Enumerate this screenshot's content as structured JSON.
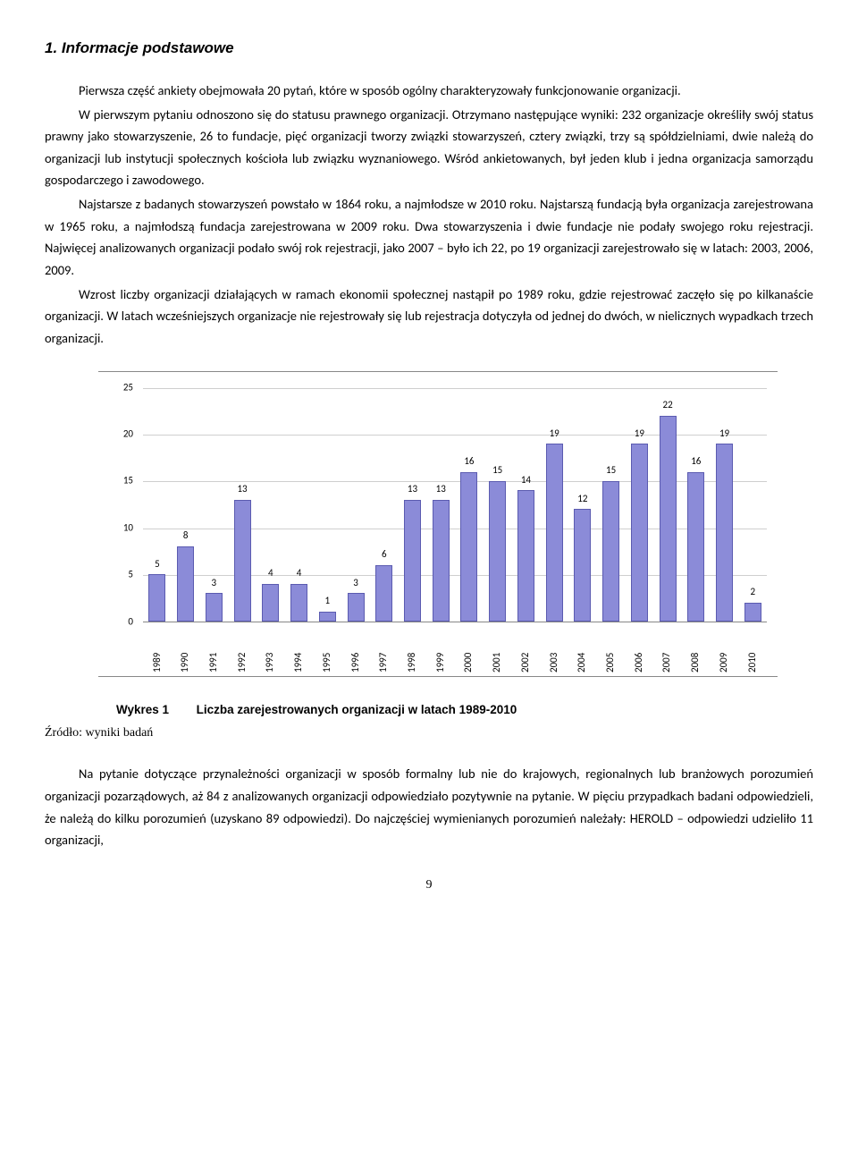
{
  "heading": "1. Informacje podstawowe",
  "para1": "Pierwsza część ankiety obejmowała 20 pytań, które w sposób ogólny charakteryzowały funkcjonowanie organizacji.",
  "para2": "W pierwszym pytaniu odnoszono się do statusu prawnego organizacji. Otrzymano następujące wyniki: 232 organizacje określiły swój status prawny jako stowarzyszenie, 26 to fundacje, pięć organizacji tworzy związki stowarzyszeń, cztery związki, trzy są spółdzielniami, dwie należą do organizacji lub instytucji społecznych kościoła lub związku wyznaniowego. Wśród ankietowanych, był jeden klub i jedna organizacja samorządu gospodarczego i zawodowego.",
  "para3": "Najstarsze z badanych stowarzyszeń powstało w 1864 roku, a najmłodsze w 2010 roku. Najstarszą fundacją była organizacja zarejestrowana w 1965 roku, a najmłodszą fundacja zarejestrowana w 2009 roku. Dwa stowarzyszenia i dwie fundacje nie podały swojego roku rejestracji. Najwięcej analizowanych organizacji podało swój rok rejestracji, jako 2007 – było ich 22, po 19 organizacji zarejestrowało się w latach: 2003, 2006, 2009.",
  "para4": "Wzrost liczby organizacji działających w ramach ekonomii społecznej nastąpił po 1989 roku, gdzie rejestrować zaczęło się po kilkanaście organizacji. W latach wcześniejszych organizacje nie rejestrowały się lub rejestracja dotyczyła od jednej do dwóch, w nielicznych wypadkach trzech organizacji.",
  "chart": {
    "type": "bar",
    "years": [
      "1989",
      "1990",
      "1991",
      "1992",
      "1993",
      "1994",
      "1995",
      "1996",
      "1997",
      "1998",
      "1999",
      "2000",
      "2001",
      "2002",
      "2003",
      "2004",
      "2005",
      "2006",
      "2007",
      "2008",
      "2009",
      "2010"
    ],
    "values": [
      5,
      8,
      3,
      13,
      4,
      4,
      1,
      3,
      6,
      13,
      13,
      16,
      15,
      14,
      19,
      12,
      15,
      19,
      22,
      16,
      19,
      2
    ],
    "ymax": 25,
    "ytick_step": 5,
    "bar_color": "#8b8bd8",
    "bar_border": "#5b5bb0",
    "grid_color": "#cfcfcf",
    "background": "#ffffff",
    "value_fontsize": 11,
    "axis_fontsize": 11,
    "border_color": "#888888"
  },
  "caption_label": "Wykres 1",
  "caption_text": "Liczba zarejestrowanych organizacji w latach 1989-2010",
  "source": "Źródło: wyniki badań",
  "para5": "Na pytanie dotyczące przynależności organizacji w sposób formalny lub nie do krajowych, regionalnych lub branżowych porozumień organizacji pozarządowych, aż 84 z analizowanych organizacji odpowiedziało pozytywnie na pytanie. W pięciu przypadkach badani odpowiedzieli, że należą do kilku porozumień (uzyskano 89 odpowiedzi). Do najczęściej wymienianych porozumień należały: HEROLD – odpowiedzi udzieliło 11 organizacji,",
  "page_number": "9"
}
